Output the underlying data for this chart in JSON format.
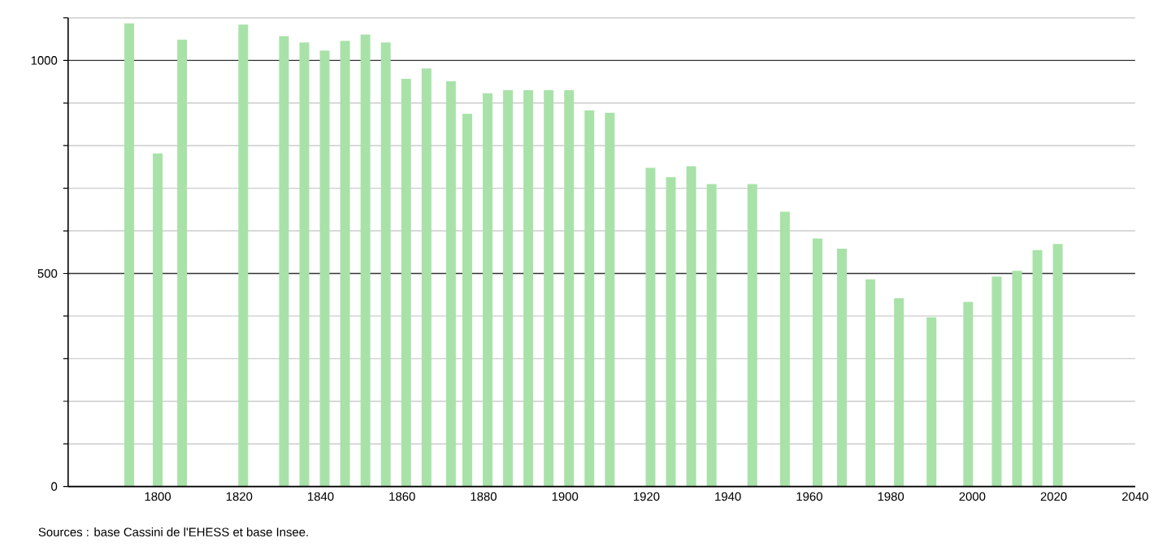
{
  "chart_data": {
    "type": "bar",
    "color": "#a8e2a8",
    "x": [
      1793,
      1800,
      1806,
      1821,
      1831,
      1836,
      1841,
      1846,
      1851,
      1856,
      1861,
      1866,
      1872,
      1876,
      1881,
      1886,
      1891,
      1896,
      1901,
      1906,
      1911,
      1921,
      1926,
      1931,
      1936,
      1946,
      1954,
      1962,
      1968,
      1975,
      1982,
      1990,
      1999,
      2006,
      2011,
      2016,
      2021
    ],
    "values": [
      1087,
      782,
      1049,
      1084,
      1057,
      1042,
      1023,
      1046,
      1061,
      1042,
      957,
      981,
      951,
      875,
      923,
      930,
      930,
      930,
      930,
      883,
      877,
      748,
      726,
      752,
      710,
      710,
      645,
      582,
      558,
      486,
      442,
      397,
      433,
      493,
      506,
      555,
      569
    ],
    "xlim": [
      1778,
      2040
    ],
    "xticks": [
      1800,
      1820,
      1840,
      1860,
      1880,
      1900,
      1920,
      1940,
      1960,
      1980,
      2000,
      2020,
      2040
    ],
    "ylim": [
      0,
      1100
    ],
    "yticks": [
      0,
      {
        "value": 100,
        "label": null
      },
      {
        "value": 200,
        "label": null
      },
      {
        "value": 300,
        "label": null
      },
      {
        "value": 400,
        "label": null
      },
      500,
      {
        "value": 600,
        "label": null
      },
      {
        "value": 700,
        "label": null
      },
      {
        "value": 800,
        "label": null
      },
      {
        "value": 900,
        "label": null
      },
      1000,
      {
        "value": 1100,
        "label": null
      }
    ],
    "grid": "y",
    "annotations": [
      "Sources : base Cassini de l'EHESS et base Insee."
    ]
  }
}
